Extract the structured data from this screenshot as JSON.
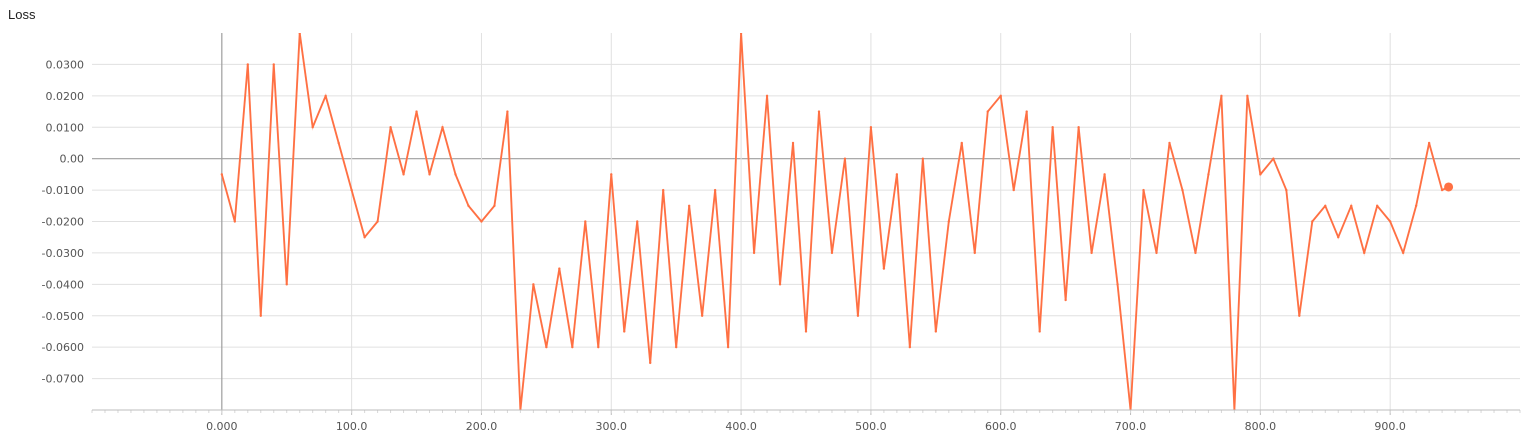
{
  "chart_data": {
    "type": "line",
    "title": "Loss",
    "xlabel": "",
    "ylabel": "",
    "xlim": [
      -100,
      1000
    ],
    "ylim": [
      -0.08,
      0.04
    ],
    "x_ticks": [
      0,
      100,
      200,
      300,
      400,
      500,
      600,
      700,
      800,
      900
    ],
    "x_tick_labels": [
      "0.000",
      "100.0",
      "200.0",
      "300.0",
      "400.0",
      "500.0",
      "600.0",
      "700.0",
      "800.0",
      "900.0"
    ],
    "y_ticks": [
      0.03,
      0.02,
      0.01,
      0.0,
      -0.01,
      -0.02,
      -0.03,
      -0.04,
      -0.05,
      -0.06,
      -0.07
    ],
    "y_tick_labels": [
      "0.0300",
      "0.0200",
      "0.0100",
      "0.00",
      "-0.0100",
      "-0.0200",
      "-0.0300",
      "-0.0400",
      "-0.0500",
      "-0.0600",
      "-0.0700"
    ],
    "grid": true,
    "colors": {
      "smoothed": "#ff7043",
      "raw": "#ffccbc",
      "grid": "#e0e0e0",
      "zero_line": "#9e9e9e"
    },
    "series": [
      {
        "x": [
          0,
          10,
          20,
          30,
          40,
          50,
          60,
          70,
          80,
          90,
          100,
          110,
          120,
          130,
          140,
          150,
          160,
          170,
          180,
          190,
          200,
          210,
          220,
          230,
          240,
          250,
          260,
          270,
          280,
          290,
          300,
          310,
          320,
          330,
          340,
          350,
          360,
          370,
          380,
          390,
          400,
          410,
          420,
          430,
          440,
          450,
          460,
          470,
          480,
          490,
          500,
          510,
          520,
          530,
          540,
          550,
          560,
          570,
          580,
          590,
          600,
          610,
          620,
          630,
          640,
          650,
          660,
          670,
          680,
          690,
          700,
          710,
          720,
          730,
          740,
          750,
          760,
          770,
          780,
          790,
          800,
          810,
          820,
          830,
          840,
          850,
          860,
          870,
          880,
          890,
          900,
          910,
          920,
          930,
          940,
          945
        ],
        "y": [
          -0.005,
          -0.02,
          0.03,
          -0.05,
          0.03,
          -0.04,
          0.04,
          0.01,
          0.02,
          0.005,
          -0.01,
          -0.025,
          -0.02,
          0.01,
          -0.005,
          0.015,
          -0.005,
          0.01,
          -0.005,
          -0.015,
          -0.02,
          -0.015,
          0.015,
          -0.08,
          -0.04,
          -0.06,
          -0.035,
          -0.06,
          -0.02,
          -0.06,
          -0.005,
          -0.055,
          -0.02,
          -0.065,
          -0.01,
          -0.06,
          -0.015,
          -0.05,
          -0.01,
          -0.06,
          0.04,
          -0.03,
          0.02,
          -0.04,
          0.005,
          -0.055,
          0.015,
          -0.03,
          0.0,
          -0.05,
          0.01,
          -0.035,
          -0.005,
          -0.06,
          0.0,
          -0.055,
          -0.02,
          0.005,
          -0.03,
          0.015,
          0.02,
          -0.01,
          0.015,
          -0.055,
          0.01,
          -0.045,
          0.01,
          -0.03,
          -0.005,
          -0.04,
          -0.08,
          -0.01,
          -0.03,
          0.005,
          -0.01,
          -0.03,
          -0.005,
          0.02,
          -0.08,
          0.02,
          -0.005,
          0.0,
          -0.01,
          -0.05,
          -0.02,
          -0.015,
          -0.025,
          -0.015,
          -0.03,
          -0.015,
          -0.02,
          -0.03,
          -0.015,
          0.005,
          -0.01,
          -0.009
        ]
      }
    ]
  }
}
